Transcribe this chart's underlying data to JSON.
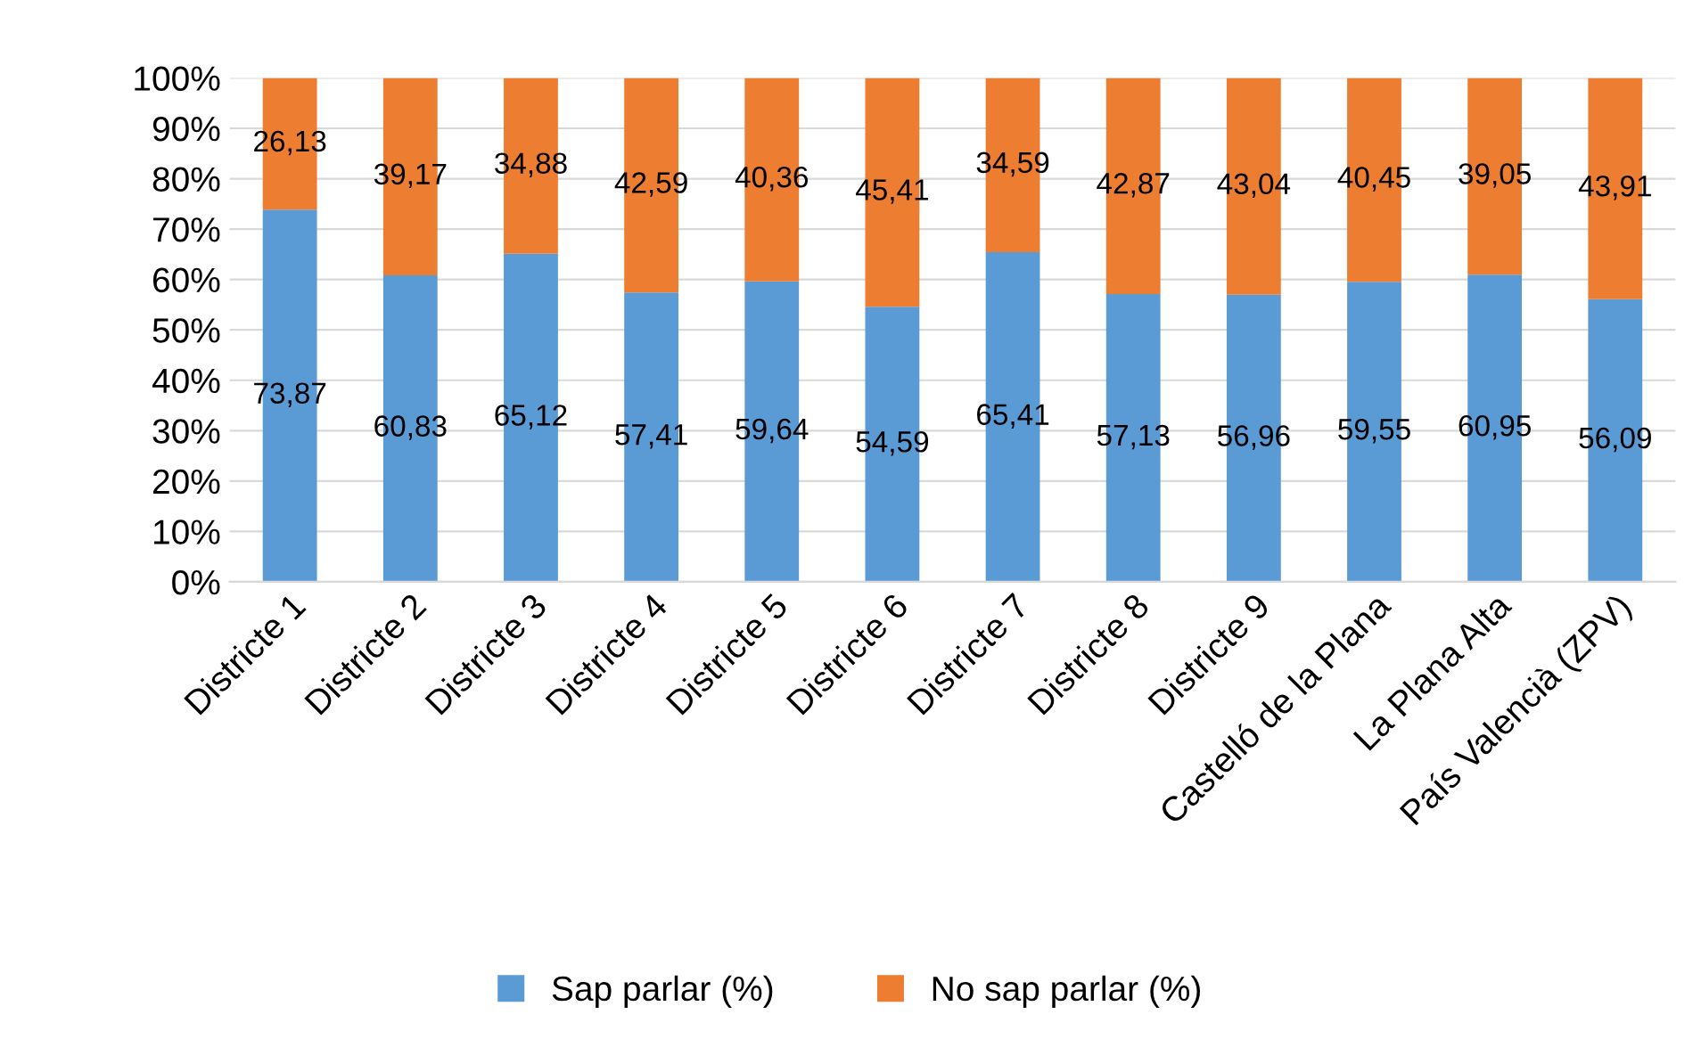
{
  "chart_data": {
    "type": "bar",
    "stacked": true,
    "categories": [
      "Districte 1",
      "Districte 2",
      "Districte 3",
      "Districte 4",
      "Districte 5",
      "Districte 6",
      "Districte 7",
      "Districte 8",
      "Districte 9",
      "Castelló de la Plana",
      "La Plana Alta",
      "País Valencià (ZPV)"
    ],
    "series": [
      {
        "name": "Sap parlar (%)",
        "color": "#5b9bd5",
        "values": [
          73.87,
          60.83,
          65.12,
          57.41,
          59.64,
          54.59,
          65.41,
          57.13,
          56.96,
          59.55,
          60.95,
          56.09
        ],
        "value_labels": [
          "73,87",
          "60,83",
          "65,12",
          "57,41",
          "59,64",
          "54,59",
          "65,41",
          "57,13",
          "56,96",
          "59,55",
          "60,95",
          "56,09"
        ]
      },
      {
        "name": "No sap parlar (%)",
        "color": "#ed7d31",
        "values": [
          26.13,
          39.17,
          34.88,
          42.59,
          40.36,
          45.41,
          34.59,
          42.87,
          43.04,
          40.45,
          39.05,
          43.91
        ],
        "value_labels": [
          "26,13",
          "39,17",
          "34,88",
          "42,59",
          "40,36",
          "45,41",
          "34,59",
          "42,87",
          "43,04",
          "40,45",
          "39,05",
          "43,91"
        ]
      }
    ],
    "ylim": [
      0,
      100
    ],
    "yticks": [
      {
        "value": 0,
        "label": "0%"
      },
      {
        "value": 10,
        "label": "10%"
      },
      {
        "value": 20,
        "label": "20%"
      },
      {
        "value": 30,
        "label": "30%"
      },
      {
        "value": 40,
        "label": "40%"
      },
      {
        "value": 50,
        "label": "50%"
      },
      {
        "value": 60,
        "label": "60%"
      },
      {
        "value": 70,
        "label": "70%"
      },
      {
        "value": 80,
        "label": "80%"
      },
      {
        "value": 90,
        "label": "90%"
      },
      {
        "value": 100,
        "label": "100%"
      }
    ],
    "grid": "y",
    "legend": "bottom"
  }
}
